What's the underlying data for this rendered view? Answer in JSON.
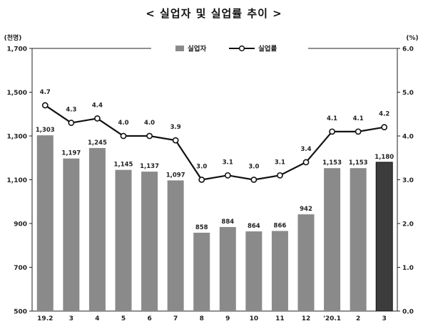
{
  "chart_data": {
    "type": "bar+line",
    "title": "< 실업자 및 실업률 추이 >",
    "left_axis_unit": "(천명)",
    "right_axis_unit": "(%)",
    "categories": [
      "19.2",
      "3",
      "4",
      "5",
      "6",
      "7",
      "8",
      "9",
      "10",
      "11",
      "12",
      "'20.1",
      "2",
      "3"
    ],
    "left_ticks": [
      "1,700",
      "1,500",
      "1,300",
      "1,100",
      "900",
      "700",
      "500"
    ],
    "right_ticks": [
      "6.0",
      "5.0",
      "4.0",
      "3.0",
      "2.0",
      "1.0",
      "0.0"
    ],
    "ylim_left": [
      500,
      1700
    ],
    "ylim_right": [
      0.0,
      6.0
    ],
    "series": [
      {
        "name": "실업자",
        "type": "bar",
        "axis": "left",
        "values": [
          1303,
          1197,
          1245,
          1145,
          1137,
          1097,
          858,
          884,
          864,
          866,
          942,
          1153,
          1153,
          1180
        ],
        "labels": [
          "1,303",
          "1,197",
          "1,245",
          "1,145",
          "1,137",
          "1,097",
          "858",
          "884",
          "864",
          "866",
          "942",
          "1,153",
          "1,153",
          "1,180"
        ],
        "color": "#8a8a8a",
        "highlight_color": "#3c3c3c"
      },
      {
        "name": "실업률",
        "type": "line",
        "axis": "right",
        "values": [
          4.7,
          4.3,
          4.4,
          4.0,
          4.0,
          3.9,
          3.0,
          3.1,
          3.0,
          3.1,
          3.4,
          4.1,
          4.1,
          4.2
        ],
        "labels": [
          "4.7",
          "4.3",
          "4.4",
          "4.0",
          "4.0",
          "3.9",
          "3.0",
          "3.1",
          "3.0",
          "3.1",
          "3.4",
          "4.1",
          "4.1",
          "4.2"
        ],
        "color": "#111111"
      }
    ],
    "legend_position": "top-center",
    "grid": false
  }
}
